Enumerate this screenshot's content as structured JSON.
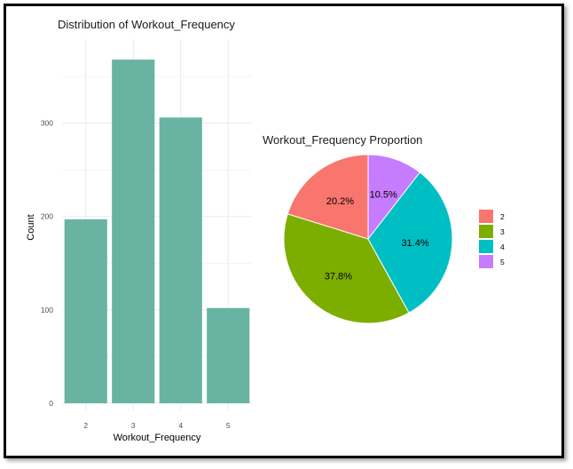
{
  "chart_data": [
    {
      "type": "bar",
      "title": "Distribution of Workout_Frequency",
      "xlabel": "Workout_Frequency",
      "ylabel": "Count",
      "categories": [
        "2",
        "3",
        "4",
        "5"
      ],
      "values": [
        197,
        368,
        306,
        102
      ],
      "ylim": [
        0,
        390
      ],
      "yticks": [
        "0",
        "100",
        "200",
        "300"
      ],
      "grid": true,
      "bar_color": "#69b3a2"
    },
    {
      "type": "pie",
      "title": "Workout_Frequency Proportion",
      "categories": [
        "2",
        "3",
        "4",
        "5"
      ],
      "values": [
        20.2,
        37.8,
        31.4,
        10.5
      ],
      "labels": [
        "20.2%",
        "37.8%",
        "31.4%",
        "10.5%"
      ],
      "colors": [
        "#f8766d",
        "#7cae00",
        "#00bfc4",
        "#c77cff"
      ],
      "legend_position": "right"
    }
  ]
}
